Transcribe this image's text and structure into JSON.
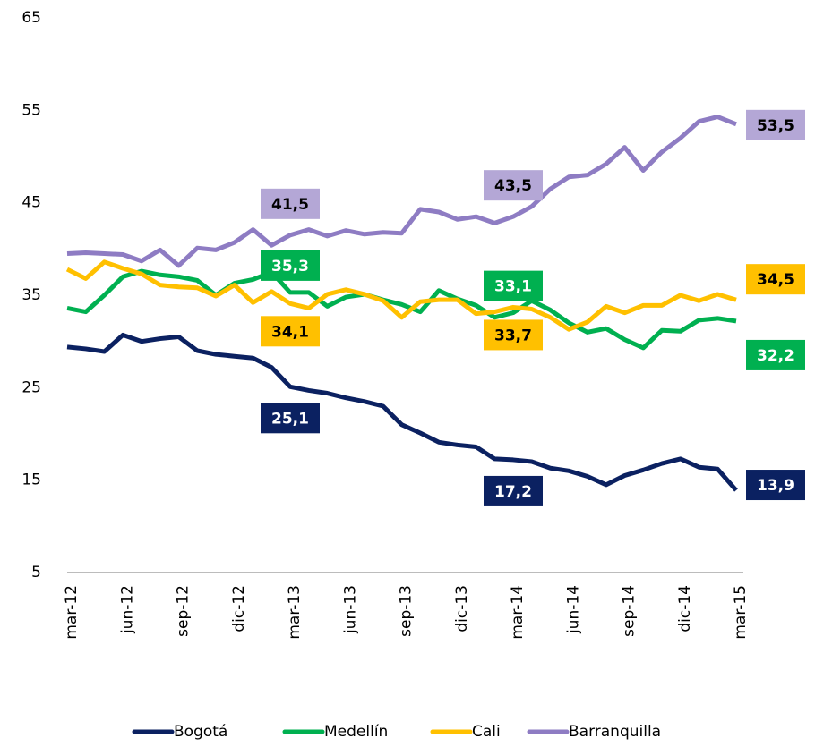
{
  "chart_data": {
    "type": "line",
    "categories": [
      "mar-12",
      null,
      null,
      "jun-12",
      null,
      null,
      "sep-12",
      null,
      null,
      "dic-12",
      null,
      null,
      "mar-13",
      null,
      null,
      "jun-13",
      null,
      null,
      "sep-13",
      null,
      null,
      "dic-13",
      null,
      null,
      "mar-14",
      null,
      null,
      "jun-14",
      null,
      null,
      "sep-14",
      null,
      null,
      "dic-14",
      null,
      null,
      "mar-15"
    ],
    "series": [
      {
        "name": "Bogotá",
        "color": "#0b2161",
        "values": [
          29.4,
          29.2,
          28.9,
          30.7,
          30.0,
          30.3,
          30.5,
          29.0,
          28.6,
          28.4,
          28.2,
          27.2,
          25.1,
          24.7,
          24.4,
          23.9,
          23.5,
          23.0,
          21.0,
          20.1,
          19.1,
          18.8,
          18.6,
          17.3,
          17.2,
          17.0,
          16.3,
          16.0,
          15.4,
          14.5,
          15.5,
          16.1,
          16.8,
          17.3,
          16.4,
          16.2,
          13.9
        ],
        "value_labels": [
          null,
          null,
          null,
          null,
          null,
          null,
          null,
          null,
          null,
          null,
          null,
          null,
          "25,1",
          null,
          null,
          null,
          null,
          null,
          null,
          null,
          null,
          null,
          null,
          null,
          "17,2",
          null,
          null,
          null,
          null,
          null,
          null,
          null,
          null,
          null,
          null,
          null,
          "13,9"
        ]
      },
      {
        "name": "Medellín",
        "color": "#00b050",
        "values": [
          33.6,
          33.2,
          35.0,
          37.0,
          37.6,
          37.2,
          37.0,
          36.6,
          35.0,
          36.3,
          36.7,
          37.5,
          35.3,
          35.3,
          33.8,
          34.8,
          35.1,
          34.5,
          34.0,
          33.2,
          35.5,
          34.6,
          33.9,
          32.6,
          33.1,
          34.4,
          33.4,
          32.0,
          31.0,
          31.4,
          30.2,
          29.3,
          31.2,
          31.1,
          32.3,
          32.5,
          32.2
        ],
        "value_labels": [
          null,
          null,
          null,
          null,
          null,
          null,
          null,
          null,
          null,
          null,
          null,
          null,
          "35,3",
          null,
          null,
          null,
          null,
          null,
          null,
          null,
          null,
          null,
          null,
          null,
          "33,1",
          null,
          null,
          null,
          null,
          null,
          null,
          null,
          null,
          null,
          null,
          null,
          "32,2"
        ]
      },
      {
        "name": "Cali",
        "color": "#ffc000",
        "values": [
          37.8,
          36.8,
          38.6,
          37.9,
          37.3,
          36.1,
          35.9,
          35.8,
          34.9,
          36.1,
          34.2,
          35.4,
          34.1,
          33.6,
          35.1,
          35.6,
          35.1,
          34.4,
          32.6,
          34.3,
          34.5,
          34.5,
          33.0,
          33.2,
          33.7,
          33.5,
          32.6,
          31.3,
          32.1,
          33.8,
          33.1,
          33.9,
          33.9,
          35.0,
          34.4,
          35.1,
          34.5
        ],
        "value_labels": [
          null,
          null,
          null,
          null,
          null,
          null,
          null,
          null,
          null,
          null,
          null,
          null,
          "34,1",
          null,
          null,
          null,
          null,
          null,
          null,
          null,
          null,
          null,
          null,
          null,
          "33,7",
          null,
          null,
          null,
          null,
          null,
          null,
          null,
          null,
          null,
          null,
          null,
          "34,5"
        ]
      },
      {
        "name": "Barranquilla",
        "color": "#8e7cc3",
        "values": [
          39.5,
          39.6,
          39.5,
          39.4,
          38.7,
          39.9,
          38.2,
          40.1,
          39.9,
          40.7,
          42.1,
          40.4,
          41.5,
          42.1,
          41.4,
          42.0,
          41.6,
          41.8,
          41.7,
          44.3,
          44.0,
          43.2,
          43.5,
          42.8,
          43.5,
          44.6,
          46.5,
          47.8,
          48.0,
          49.2,
          51.0,
          48.5,
          50.5,
          52.0,
          53.8,
          54.3,
          53.5
        ],
        "value_labels": [
          null,
          null,
          null,
          null,
          null,
          null,
          null,
          null,
          null,
          null,
          null,
          null,
          "41,5",
          null,
          null,
          null,
          null,
          null,
          null,
          null,
          null,
          null,
          null,
          null,
          "43,5",
          null,
          null,
          null,
          null,
          null,
          null,
          null,
          null,
          null,
          null,
          null,
          "53,5"
        ]
      }
    ],
    "ylim": [
      5,
      65
    ],
    "yticks": [
      5,
      15,
      25,
      35,
      45,
      55,
      65
    ],
    "grid": false,
    "legend": "bottom"
  }
}
